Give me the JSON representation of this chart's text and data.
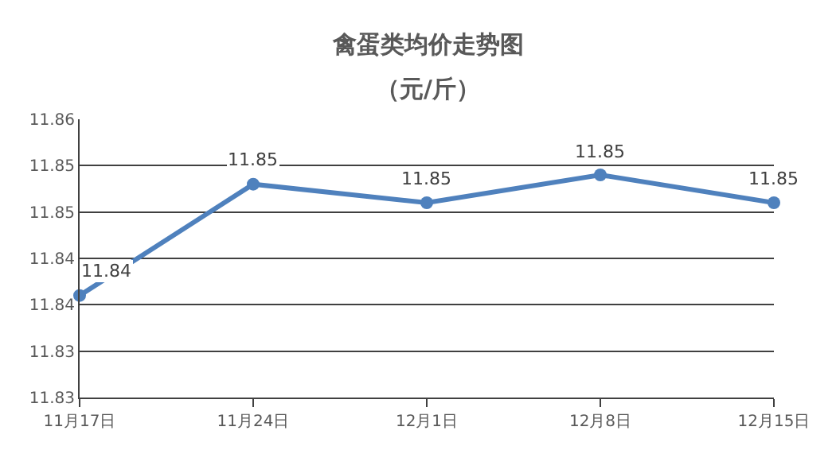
{
  "chart_data": {
    "type": "line",
    "title": "禽蛋类均价走势图",
    "subtitle": "（元/斤）",
    "categories": [
      "11月17日",
      "11月24日",
      "12月1日",
      "12月8日",
      "12月15日"
    ],
    "series": [
      {
        "color": "#4f81bd",
        "values": [
          11.841,
          11.853,
          11.851,
          11.854,
          11.851
        ],
        "value_labels": [
          "11.84",
          "11.85",
          "11.85",
          "11.85",
          "11.85"
        ]
      }
    ],
    "ylim": [
      11.83,
      11.86
    ],
    "yticks": [
      11.83,
      {
        "value": 11.835,
        "label": "11.83"
      },
      11.84,
      {
        "value": 11.845,
        "label": "11.84"
      },
      11.85,
      {
        "value": 11.855,
        "label": "11.85"
      },
      11.86
    ],
    "grid": "y",
    "marker": "circle",
    "line_style": "solid"
  }
}
